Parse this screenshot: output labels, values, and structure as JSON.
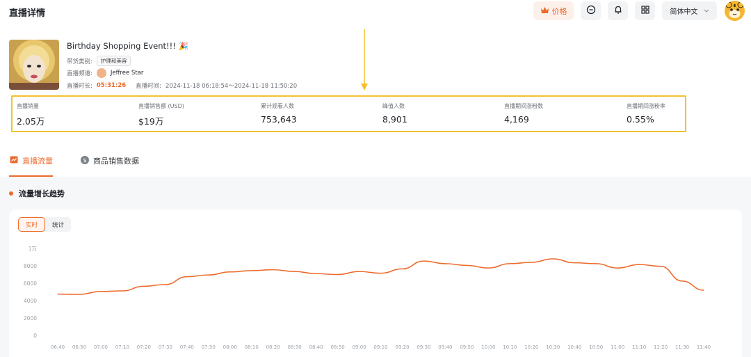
{
  "header": {
    "title": "直播详情",
    "price_label": "价格",
    "lang_label": "简体中文",
    "icons": [
      "crown-icon",
      "message-icon",
      "bell-icon",
      "grid-icon",
      "chevron-down-icon"
    ]
  },
  "live": {
    "title": "Birthday Shopping Event!!! 🎉",
    "category_label": "带货类别:",
    "category_tag": "护理和美容",
    "anchor_label": "直播频道:",
    "anchor_name": "Jeffree Star",
    "duration_label": "直播时长:",
    "duration": "05:31:26",
    "time_label": "直播时间:",
    "time_range": "2024-11-18 06:18:54～2024-11-18 11:50:20"
  },
  "metrics": [
    {
      "label": "直播销量",
      "value": "2.05万"
    },
    {
      "label": "直播销售额 (USD)",
      "value": "$19万"
    },
    {
      "label": "累计观看人数",
      "value": "753,643"
    },
    {
      "label": "峰值人数",
      "value": "8,901"
    },
    {
      "label": "直播期间涨粉数",
      "value": "4,169"
    },
    {
      "label": "直播期间涨粉率",
      "value": "0.55%"
    }
  ],
  "tabs": [
    {
      "label": "直播流量",
      "icon": "line-chart-icon",
      "active": true
    },
    {
      "label": "商品销售数据",
      "icon": "dollar-icon",
      "active": false
    }
  ],
  "trend": {
    "title": "流量增长趋势",
    "segments": [
      "实时",
      "统计"
    ]
  },
  "colors": {
    "accent": "#ec6a2b",
    "highlight": "#f2c12e"
  },
  "chart_data": {
    "type": "line",
    "x": [
      "06:40",
      "06:50",
      "07:00",
      "07:10",
      "07:20",
      "07:30",
      "07:40",
      "07:50",
      "08:00",
      "08:10",
      "08:20",
      "08:30",
      "08:40",
      "08:50",
      "09:00",
      "09:10",
      "09:20",
      "09:30",
      "09:40",
      "09:50",
      "10:00",
      "10:10",
      "10:20",
      "10:30",
      "10:40",
      "10:50",
      "11:00",
      "11:10",
      "11:20",
      "11:30",
      "11:40"
    ],
    "series": [
      {
        "values": [
          4750,
          4720,
          5050,
          5120,
          5650,
          5850,
          6750,
          6950,
          7300,
          7450,
          7550,
          7350,
          7100,
          7000,
          7350,
          7150,
          7650,
          8550,
          8250,
          8050,
          7750,
          8250,
          8400,
          8800,
          8350,
          8250,
          7750,
          8150,
          7950,
          6250,
          5200
        ]
      }
    ],
    "y_ticks": [
      "0",
      "2000",
      "4000",
      "6000",
      "8000",
      "1万"
    ],
    "ylim": [
      0,
      10000
    ],
    "grid": false
  }
}
